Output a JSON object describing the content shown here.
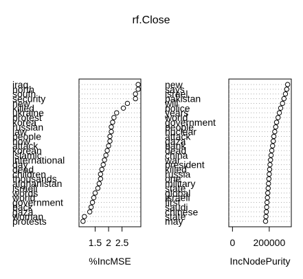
{
  "title": "rf.Close",
  "chart_data": [
    {
      "type": "scatter",
      "xlabel": "%IncMSE",
      "ticks": [
        1.5,
        2,
        2.5
      ],
      "tick_labels": [
        "1.5",
        "2",
        "2.5"
      ],
      "xlim": [
        0.9,
        3.2
      ],
      "grid": true,
      "labels": [
        "iraq",
        "north",
        "south",
        "security",
        "new",
        "killed",
        "ukraine",
        "protest",
        "korea",
        "russian",
        "law",
        "people",
        "now",
        "attack",
        "korean",
        "islamic",
        "international",
        "day",
        "dead",
        "children",
        "thousands",
        "afghanistan",
        "israeli",
        "words",
        "world",
        "government",
        "back",
        "gaza",
        "woman",
        "protests"
      ],
      "values": [
        3.1,
        3.1,
        3.0,
        3.0,
        2.7,
        2.55,
        2.3,
        2.2,
        2.15,
        2.1,
        2.1,
        2.05,
        2.05,
        2.0,
        1.95,
        1.9,
        1.85,
        1.8,
        1.75,
        1.7,
        1.7,
        1.65,
        1.6,
        1.5,
        1.45,
        1.4,
        1.35,
        1.3,
        1.1,
        1.05
      ]
    },
    {
      "type": "scatter",
      "xlabel": "IncNodePurity",
      "ticks": [
        0,
        200000
      ],
      "tick_labels": [
        "0",
        "200000"
      ],
      "xlim": [
        -20000,
        320000
      ],
      "grid": true,
      "labels": [
        "new",
        "says",
        "israel",
        "pakistan",
        "will",
        "police",
        "years",
        "world",
        "government",
        "people",
        "nuclear",
        "attack",
        "gaza",
        "bank",
        "dead",
        "china",
        "war",
        "president",
        "killed",
        "russia",
        "one",
        "military",
        "state",
        "global",
        "israeli",
        "first",
        "saudi",
        "chinese",
        "state",
        "may"
      ],
      "values": [
        300000,
        295000,
        288000,
        280000,
        272000,
        262000,
        255000,
        248000,
        240000,
        235000,
        230000,
        225000,
        222000,
        218000,
        214000,
        210000,
        207000,
        204000,
        202000,
        200000,
        198000,
        196000,
        194000,
        192000,
        190000,
        188000,
        186000,
        184000,
        182000,
        180000
      ]
    }
  ]
}
